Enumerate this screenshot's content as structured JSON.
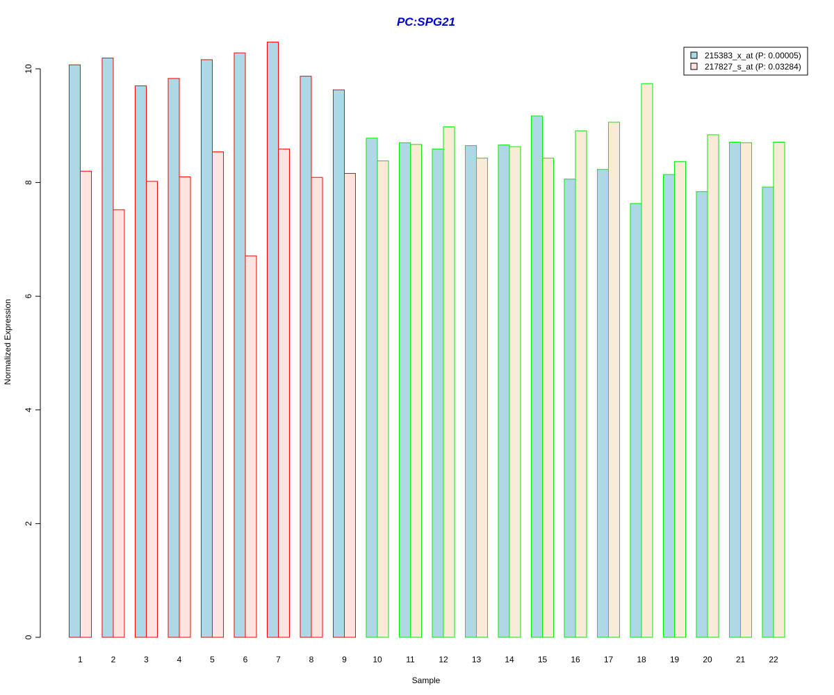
{
  "chart_data": {
    "type": "bar",
    "title": "PC:SPG21",
    "xlabel": "Sample",
    "ylabel": "Normalized Expression",
    "ylim": [
      0,
      10.5
    ],
    "y_ticks": [
      "0",
      "2",
      "4",
      "6",
      "8",
      "10"
    ],
    "categories": [
      "1",
      "2",
      "3",
      "4",
      "5",
      "6",
      "7",
      "8",
      "9",
      "10",
      "11",
      "12",
      "13",
      "14",
      "15",
      "16",
      "17",
      "18",
      "19",
      "20",
      "21",
      "22"
    ],
    "series": [
      {
        "name": "215383_x_at (P: 0.00005)",
        "fill": "#add8e6",
        "values": [
          10.07,
          10.19,
          9.7,
          9.83,
          10.16,
          10.28,
          10.47,
          9.87,
          9.63,
          8.78,
          8.7,
          8.59,
          8.65,
          8.66,
          9.17,
          8.06,
          8.23,
          7.63,
          8.14,
          7.84,
          8.71,
          7.92
        ]
      },
      {
        "name": "217827_s_at (P: 0.03284)",
        "fill_group1": "#ffe4e1",
        "fill_group2": "#faebd7",
        "values": [
          8.2,
          7.52,
          8.02,
          8.1,
          8.54,
          6.71,
          8.59,
          8.09,
          8.16,
          8.38,
          8.67,
          8.98,
          8.43,
          8.63,
          8.43,
          8.91,
          9.06,
          9.74,
          8.37,
          8.84,
          8.7,
          8.71
        ]
      }
    ],
    "group_border_colors": [
      "#ff0000",
      "#ff0000",
      "#ff0000",
      "#ff0000",
      "#ff0000",
      "#ff0000",
      "#ff0000",
      "#ff0000",
      "#ff0000",
      "#00ee00",
      "#00ee00",
      "#00ee00",
      "#00ee00",
      "#00ee00",
      "#00ee00",
      "#00ee00",
      "#00ee00",
      "#00ee00",
      "#00ee00",
      "#00ee00",
      "#00ee00",
      "#00ee00"
    ],
    "title_color": "#0000cd",
    "legend_position": "top-right",
    "grid": false
  }
}
